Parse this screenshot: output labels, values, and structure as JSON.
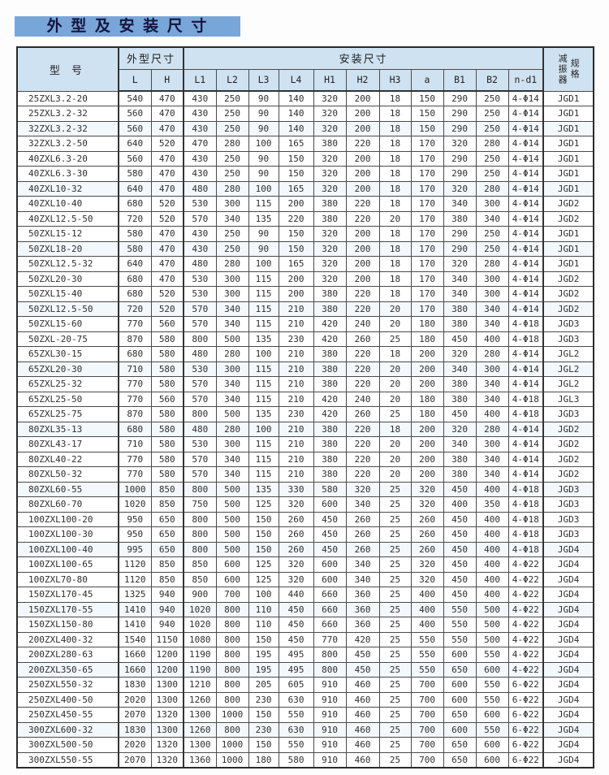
{
  "page": {
    "title": "外 型 及 安 装 尺 寸"
  },
  "colors": {
    "banner_bg": "#78a6d8",
    "header_bg": "#cfe2f1",
    "border": "#4a4a4a",
    "text": "#2e2e2e"
  },
  "table": {
    "header": {
      "model": "型  号",
      "outline_group": "外型尺寸",
      "install_group": "安装尺寸",
      "damper_line1": "减振器",
      "damper_line2": "规格",
      "sub_columns": [
        "L",
        "H",
        "L1",
        "L2",
        "L3",
        "L4",
        "H1",
        "H2",
        "H3",
        "a",
        "B1",
        "B2",
        "n-d1"
      ]
    },
    "rows": [
      [
        "25ZXL3.2-20",
        "540",
        "470",
        "430",
        "250",
        "90",
        "140",
        "320",
        "200",
        "18",
        "150",
        "290",
        "250",
        "4-Φ14",
        "JGD1"
      ],
      [
        "25ZXL3.2-32",
        "560",
        "470",
        "430",
        "250",
        "90",
        "140",
        "320",
        "200",
        "18",
        "150",
        "290",
        "250",
        "4-Φ14",
        "JGD1"
      ],
      [
        "32ZXL3.2-32",
        "560",
        "470",
        "430",
        "250",
        "90",
        "140",
        "320",
        "200",
        "18",
        "150",
        "290",
        "250",
        "4-Φ14",
        "JGD1"
      ],
      [
        "32ZXL3.2-50",
        "640",
        "520",
        "470",
        "280",
        "100",
        "165",
        "380",
        "220",
        "18",
        "170",
        "320",
        "280",
        "4-Φ14",
        "JGD1"
      ],
      [
        "40ZXL6.3-20",
        "560",
        "470",
        "430",
        "250",
        "90",
        "150",
        "320",
        "200",
        "18",
        "170",
        "290",
        "250",
        "4-Φ14",
        "JGD1"
      ],
      [
        "40ZXL6.3-30",
        "580",
        "470",
        "430",
        "250",
        "90",
        "150",
        "320",
        "200",
        "18",
        "170",
        "290",
        "250",
        "4-Φ14",
        "JGD1"
      ],
      [
        "40ZXL10-32",
        "640",
        "470",
        "480",
        "280",
        "100",
        "165",
        "320",
        "200",
        "18",
        "170",
        "320",
        "280",
        "4-Φ14",
        "JGD1"
      ],
      [
        "40ZXL10-40",
        "680",
        "520",
        "530",
        "300",
        "115",
        "200",
        "380",
        "220",
        "18",
        "170",
        "340",
        "300",
        "4-Φ14",
        "JGD2"
      ],
      [
        "40ZXL12.5-50",
        "720",
        "520",
        "570",
        "340",
        "135",
        "220",
        "380",
        "220",
        "20",
        "170",
        "380",
        "340",
        "4-Φ14",
        "JGD2"
      ],
      [
        "50ZXL15-12",
        "580",
        "470",
        "430",
        "250",
        "90",
        "150",
        "320",
        "200",
        "18",
        "170",
        "290",
        "250",
        "4-Φ14",
        "JGD1"
      ],
      [
        "50ZXL18-20",
        "580",
        "470",
        "430",
        "250",
        "90",
        "150",
        "320",
        "200",
        "18",
        "170",
        "290",
        "250",
        "4-Φ14",
        "JGD1"
      ],
      [
        "50ZXL12.5-32",
        "640",
        "470",
        "480",
        "280",
        "100",
        "165",
        "320",
        "200",
        "18",
        "170",
        "320",
        "280",
        "4-Φ14",
        "JGD1"
      ],
      [
        "50ZXL20-30",
        "680",
        "470",
        "530",
        "300",
        "115",
        "200",
        "320",
        "200",
        "18",
        "170",
        "340",
        "300",
        "4-Φ14",
        "JGD2"
      ],
      [
        "50ZXL15-40",
        "680",
        "520",
        "530",
        "300",
        "115",
        "200",
        "380",
        "220",
        "18",
        "170",
        "340",
        "300",
        "4-Φ14",
        "JGD2"
      ],
      [
        "50ZXL12.5-50",
        "720",
        "520",
        "570",
        "340",
        "115",
        "210",
        "380",
        "220",
        "20",
        "170",
        "380",
        "340",
        "4-Φ14",
        "JGD2"
      ],
      [
        "50ZXL15-60",
        "770",
        "560",
        "570",
        "340",
        "115",
        "210",
        "420",
        "240",
        "20",
        "180",
        "380",
        "340",
        "4-Φ18",
        "JGD3"
      ],
      [
        "50ZXL-20-75",
        "870",
        "580",
        "800",
        "500",
        "135",
        "230",
        "420",
        "260",
        "25",
        "180",
        "450",
        "400",
        "4-Φ18",
        "JGD3"
      ],
      [
        "65ZXL30-15",
        "680",
        "580",
        "480",
        "280",
        "100",
        "210",
        "380",
        "220",
        "18",
        "200",
        "320",
        "280",
        "4-Φ14",
        "JGL2"
      ],
      [
        "65ZXL20-30",
        "710",
        "580",
        "530",
        "300",
        "115",
        "210",
        "380",
        "220",
        "20",
        "200",
        "340",
        "300",
        "4-Φ14",
        "JGL2"
      ],
      [
        "65ZXL25-32",
        "770",
        "580",
        "570",
        "340",
        "115",
        "210",
        "380",
        "220",
        "20",
        "200",
        "380",
        "340",
        "4-Φ14",
        "JGL2"
      ],
      [
        "65ZXL25-50",
        "770",
        "560",
        "570",
        "340",
        "115",
        "210",
        "420",
        "240",
        "20",
        "180",
        "380",
        "340",
        "4-Φ18",
        "JGL3"
      ],
      [
        "65ZXL25-75",
        "870",
        "580",
        "800",
        "500",
        "135",
        "230",
        "420",
        "260",
        "25",
        "180",
        "450",
        "400",
        "4-Φ18",
        "JGD3"
      ],
      [
        "80ZXL35-13",
        "680",
        "580",
        "480",
        "280",
        "100",
        "210",
        "380",
        "220",
        "18",
        "200",
        "320",
        "280",
        "4-Φ14",
        "JGD2"
      ],
      [
        "80ZXL43-17",
        "710",
        "580",
        "530",
        "300",
        "115",
        "210",
        "380",
        "220",
        "20",
        "200",
        "340",
        "300",
        "4-Φ14",
        "JGD2"
      ],
      [
        "80ZXL40-22",
        "770",
        "580",
        "570",
        "340",
        "115",
        "210",
        "380",
        "220",
        "20",
        "200",
        "380",
        "340",
        "4-Φ14",
        "JGD2"
      ],
      [
        "80ZXL50-32",
        "770",
        "580",
        "570",
        "340",
        "115",
        "210",
        "380",
        "220",
        "20",
        "200",
        "380",
        "340",
        "4-Φ14",
        "JGD2"
      ],
      [
        "80ZXL60-55",
        "1000",
        "850",
        "800",
        "500",
        "135",
        "330",
        "580",
        "320",
        "25",
        "320",
        "450",
        "400",
        "4-Φ18",
        "JGD3"
      ],
      [
        "80ZXL60-70",
        "1020",
        "850",
        "750",
        "500",
        "125",
        "320",
        "600",
        "340",
        "25",
        "320",
        "400",
        "350",
        "4-Φ18",
        "JGD3"
      ],
      [
        "100ZXL100-20",
        "950",
        "650",
        "800",
        "500",
        "150",
        "260",
        "450",
        "260",
        "25",
        "260",
        "450",
        "400",
        "4-Φ18",
        "JGD3"
      ],
      [
        "100ZXL100-30",
        "950",
        "650",
        "800",
        "500",
        "150",
        "260",
        "450",
        "260",
        "25",
        "260",
        "450",
        "400",
        "4-Φ18",
        "JGD3"
      ],
      [
        "100ZXL100-40",
        "995",
        "650",
        "800",
        "500",
        "150",
        "260",
        "450",
        "260",
        "25",
        "260",
        "450",
        "400",
        "4-Φ18",
        "JGD4"
      ],
      [
        "100ZXL100-65",
        "1120",
        "850",
        "850",
        "600",
        "125",
        "320",
        "600",
        "340",
        "25",
        "320",
        "450",
        "400",
        "4-Φ22",
        "JGD4"
      ],
      [
        "100ZXL70-80",
        "1120",
        "850",
        "850",
        "600",
        "125",
        "320",
        "600",
        "340",
        "25",
        "320",
        "450",
        "400",
        "4-Φ22",
        "JGD4"
      ],
      [
        "150ZXL170-45",
        "1325",
        "940",
        "900",
        "700",
        "100",
        "440",
        "660",
        "360",
        "25",
        "400",
        "450",
        "400",
        "4-Φ22",
        "JGD4"
      ],
      [
        "150ZXL170-55",
        "1410",
        "940",
        "1020",
        "800",
        "110",
        "450",
        "660",
        "360",
        "25",
        "400",
        "550",
        "500",
        "4-Φ22",
        "JGD4"
      ],
      [
        "150ZXL150-80",
        "1410",
        "940",
        "1020",
        "800",
        "110",
        "450",
        "660",
        "360",
        "25",
        "400",
        "550",
        "500",
        "4-Φ22",
        "JGD4"
      ],
      [
        "200ZXL400-32",
        "1540",
        "1150",
        "1080",
        "800",
        "150",
        "450",
        "770",
        "420",
        "25",
        "550",
        "550",
        "500",
        "4-Φ22",
        "JGD4"
      ],
      [
        "200ZXL280-63",
        "1660",
        "1200",
        "1190",
        "800",
        "195",
        "495",
        "800",
        "450",
        "25",
        "550",
        "600",
        "550",
        "4-Φ22",
        "JGD4"
      ],
      [
        "200ZXL350-65",
        "1660",
        "1200",
        "1190",
        "800",
        "195",
        "495",
        "800",
        "450",
        "25",
        "550",
        "650",
        "600",
        "4-Φ22",
        "JGD4"
      ],
      [
        "250ZXL550-32",
        "1830",
        "1300",
        "1210",
        "800",
        "205",
        "605",
        "910",
        "460",
        "25",
        "700",
        "600",
        "550",
        "6-Φ22",
        "JGD4"
      ],
      [
        "250ZXL400-50",
        "2020",
        "1300",
        "1260",
        "800",
        "230",
        "630",
        "910",
        "460",
        "25",
        "700",
        "600",
        "550",
        "6-Φ22",
        "JGD4"
      ],
      [
        "250ZXL450-55",
        "2070",
        "1320",
        "1300",
        "1000",
        "150",
        "550",
        "910",
        "460",
        "25",
        "700",
        "650",
        "600",
        "6-Φ22",
        "JGD4"
      ],
      [
        "300ZXL600-32",
        "1830",
        "1300",
        "1260",
        "800",
        "230",
        "630",
        "910",
        "460",
        "25",
        "700",
        "600",
        "550",
        "6-Φ22",
        "JGD4"
      ],
      [
        "300ZXL500-50",
        "2020",
        "1320",
        "1300",
        "1000",
        "150",
        "550",
        "910",
        "460",
        "25",
        "700",
        "650",
        "600",
        "6-Φ22",
        "JGD4"
      ],
      [
        "300ZXL550-55",
        "2070",
        "1320",
        "1360",
        "1000",
        "180",
        "580",
        "910",
        "460",
        "25",
        "700",
        "650",
        "600",
        "6-Φ22",
        "JGD4"
      ]
    ]
  }
}
